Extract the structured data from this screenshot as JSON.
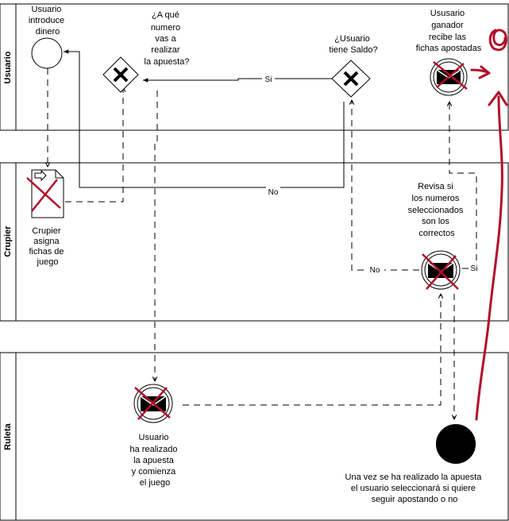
{
  "lanes": {
    "usuario": "Usuario",
    "crupier": "Crupier",
    "ruleta": "Ruleta"
  },
  "labels": {
    "usuario_introduce": [
      "Usuario",
      "introduce",
      "dinero"
    ],
    "apuesta_question": [
      "¿A qué",
      "numero",
      "vas a",
      "realizar",
      "la apuesta?"
    ],
    "saldo_question": [
      "¿Usuario",
      "tiene Saldo?"
    ],
    "ganador": [
      "Ususario",
      "ganador",
      "recibe las",
      "fichas apostadas"
    ],
    "crupier_asigna": [
      "Crupier",
      "asigna",
      "fichas de",
      "juego"
    ],
    "revisa": [
      "Revisa si",
      "los numeros",
      "seleccionados",
      "son los",
      "correctos"
    ],
    "apuesta_realizada": [
      "Usuario",
      "ha realizado",
      "la apuesta",
      "y comienza",
      "el juego"
    ],
    "fin_text": [
      "Una vez se ha realizado la apuesta",
      "el usuario seleccionará si quiere",
      "seguir apostando o no"
    ]
  },
  "flows": {
    "si_top": "Si",
    "no_mid": "No",
    "no_right": "No",
    "si_right": "Si"
  },
  "colors": {
    "stroke": "#000000",
    "annotation": "#b0102a",
    "fill": "#ffffff"
  }
}
